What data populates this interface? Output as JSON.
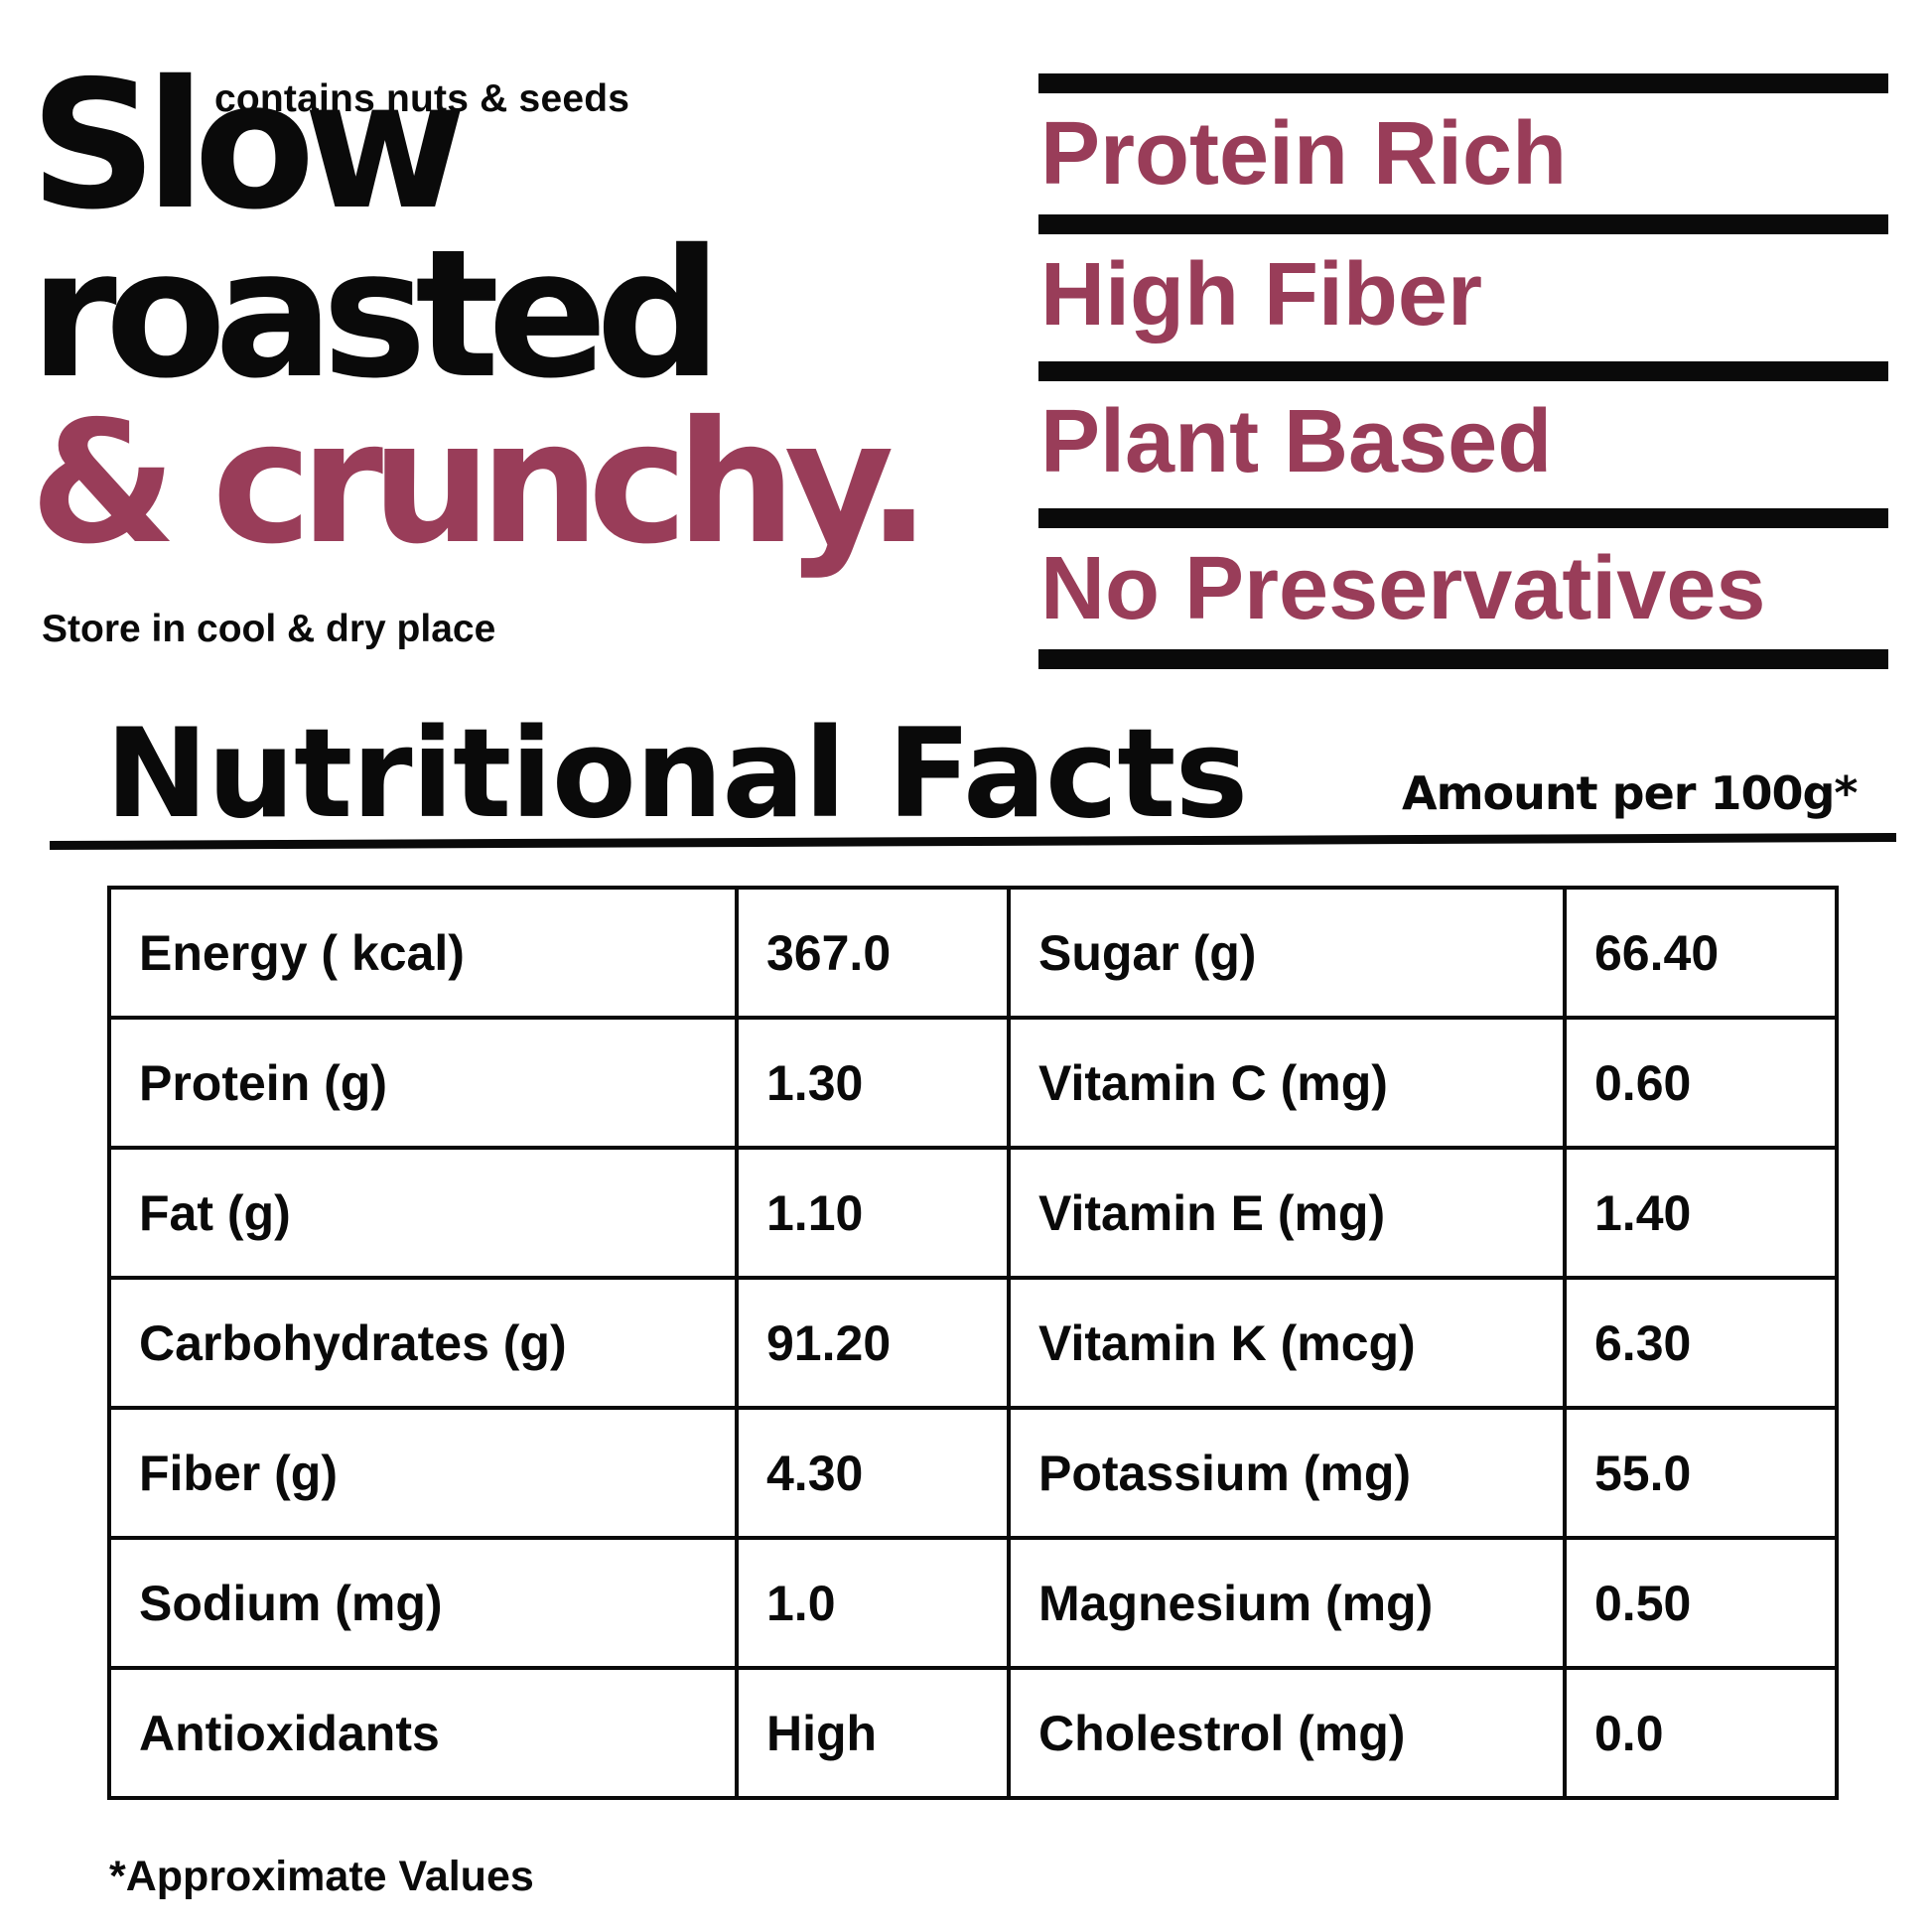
{
  "header": {
    "tag_top": "contains nuts & seeds",
    "hero_line1": "Slow",
    "hero_line2": "roasted",
    "hero_line3": "& crunchy.",
    "tag_bottom": "Store in cool & dry place"
  },
  "claims": [
    "Protein Rich",
    "High Fiber",
    "Plant Based",
    "No Preservatives"
  ],
  "nutrition": {
    "title": "Nutritional Facts",
    "amount_label": "Amount per 100g*",
    "rows": [
      {
        "n1": "Energy ( kcal)",
        "v1": "367.0",
        "n2": "Sugar (g)",
        "v2": "66.40"
      },
      {
        "n1": "Protein (g)",
        "v1": "1.30",
        "n2": "Vitamin C (mg)",
        "v2": "0.60"
      },
      {
        "n1": "Fat (g)",
        "v1": "1.10",
        "n2": "Vitamin E (mg)",
        "v2": "1.40"
      },
      {
        "n1": "Carbohydrates (g)",
        "v1": "91.20",
        "n2": "Vitamin K (mcg)",
        "v2": "6.30"
      },
      {
        "n1": "Fiber (g)",
        "v1": "4.30",
        "n2": "Potassium (mg)",
        "v2": "55.0"
      },
      {
        "n1": "Sodium (mg)",
        "v1": "1.0",
        "n2": "Magnesium (mg)",
        "v2": "0.50"
      },
      {
        "n1": "Antioxidants",
        "v1": "High",
        "n2": "Cholestrol (mg)",
        "v2": "0.0"
      }
    ],
    "footnote": "*Approximate Values"
  },
  "colors": {
    "accent": "#993d59",
    "ink": "#0a0a0a",
    "background": "#ffffff"
  }
}
